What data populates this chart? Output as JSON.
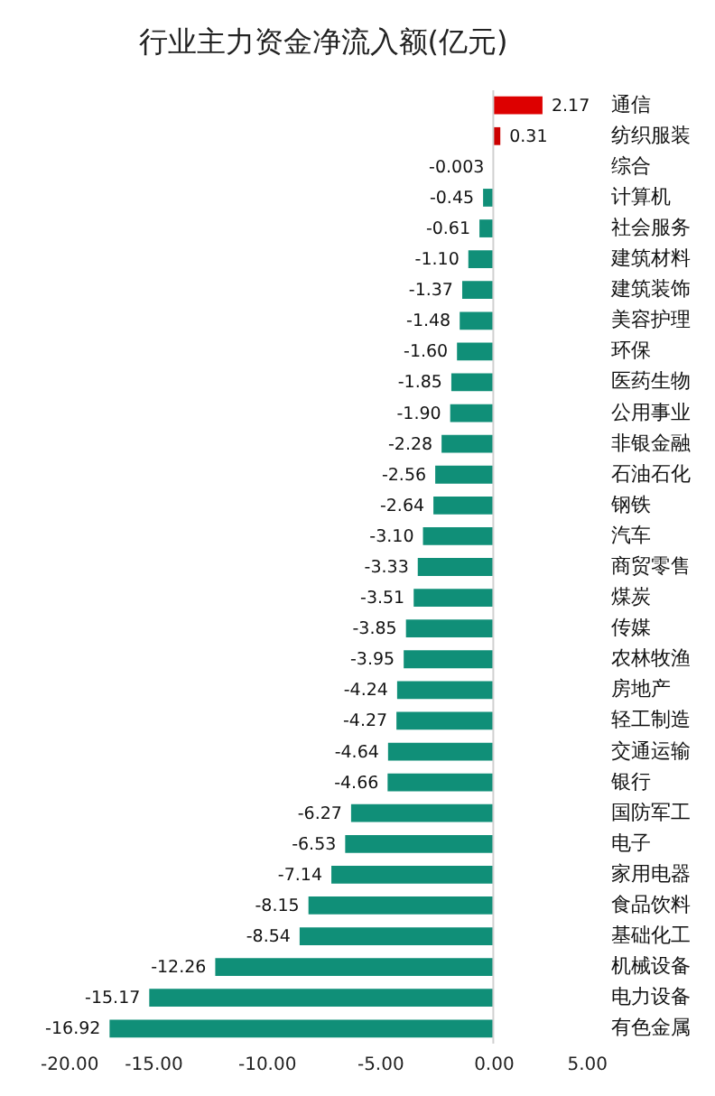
{
  "chart_data": {
    "type": "bar",
    "orientation": "horizontal",
    "title": "行业主力资金净流入额(亿元)",
    "categories": [
      "通信",
      "纺织服装",
      "综合",
      "计算机",
      "社会服务",
      "建筑材料",
      "建筑装饰",
      "美容护理",
      "环保",
      "医药生物",
      "公用事业",
      "非银金融",
      "石油石化",
      "钢铁",
      "汽车",
      "商贸零售",
      "煤炭",
      "传媒",
      "农林牧渔",
      "房地产",
      "轻工制造",
      "交通运输",
      "银行",
      "国防军工",
      "电子",
      "家用电器",
      "食品饮料",
      "基础化工",
      "机械设备",
      "电力设备",
      "有色金属"
    ],
    "values": [
      2.17,
      0.31,
      -0.003,
      -0.45,
      -0.61,
      -1.1,
      -1.37,
      -1.48,
      -1.6,
      -1.85,
      -1.9,
      -2.28,
      -2.56,
      -2.64,
      -3.1,
      -3.33,
      -3.51,
      -3.85,
      -3.95,
      -4.24,
      -4.27,
      -4.64,
      -4.66,
      -6.27,
      -6.53,
      -7.14,
      -8.15,
      -8.54,
      -12.26,
      -15.17,
      -16.92
    ],
    "value_labels": [
      "2.17",
      "0.31",
      "-0.003",
      "-0.45",
      "-0.61",
      "-1.10",
      "-1.37",
      "-1.48",
      "-1.60",
      "-1.85",
      "-1.90",
      "-2.28",
      "-2.56",
      "-2.64",
      "-3.10",
      "-3.33",
      "-3.51",
      "-3.85",
      "-3.95",
      "-4.24",
      "-4.27",
      "-4.64",
      "-4.66",
      "-6.27",
      "-6.53",
      "-7.14",
      "-8.15",
      "-8.54",
      "-12.26",
      "-15.17",
      "-16.92"
    ],
    "colors": [
      "#dd0000",
      "#cc0000",
      "#108f78",
      "#108f78",
      "#108f78",
      "#108f78",
      "#108f78",
      "#108f78",
      "#108f78",
      "#108f78",
      "#108f78",
      "#108f78",
      "#108f78",
      "#108f78",
      "#108f78",
      "#108f78",
      "#108f78",
      "#108f78",
      "#108f78",
      "#108f78",
      "#108f78",
      "#108f78",
      "#108f78",
      "#108f78",
      "#108f78",
      "#108f78",
      "#108f78",
      "#108f78",
      "#108f78",
      "#108f78",
      "#108f78"
    ],
    "xlim": [
      -20,
      5
    ],
    "xticks": [
      {
        "value": -20,
        "label": "-20.00"
      },
      {
        "value": -15,
        "label": "-15.00"
      },
      {
        "value": -10,
        "label": "-10.00"
      },
      {
        "value": -5,
        "label": "-5.00"
      },
      {
        "value": 0,
        "label": "0.00"
      },
      {
        "value": 5,
        "label": "5.00"
      }
    ]
  }
}
